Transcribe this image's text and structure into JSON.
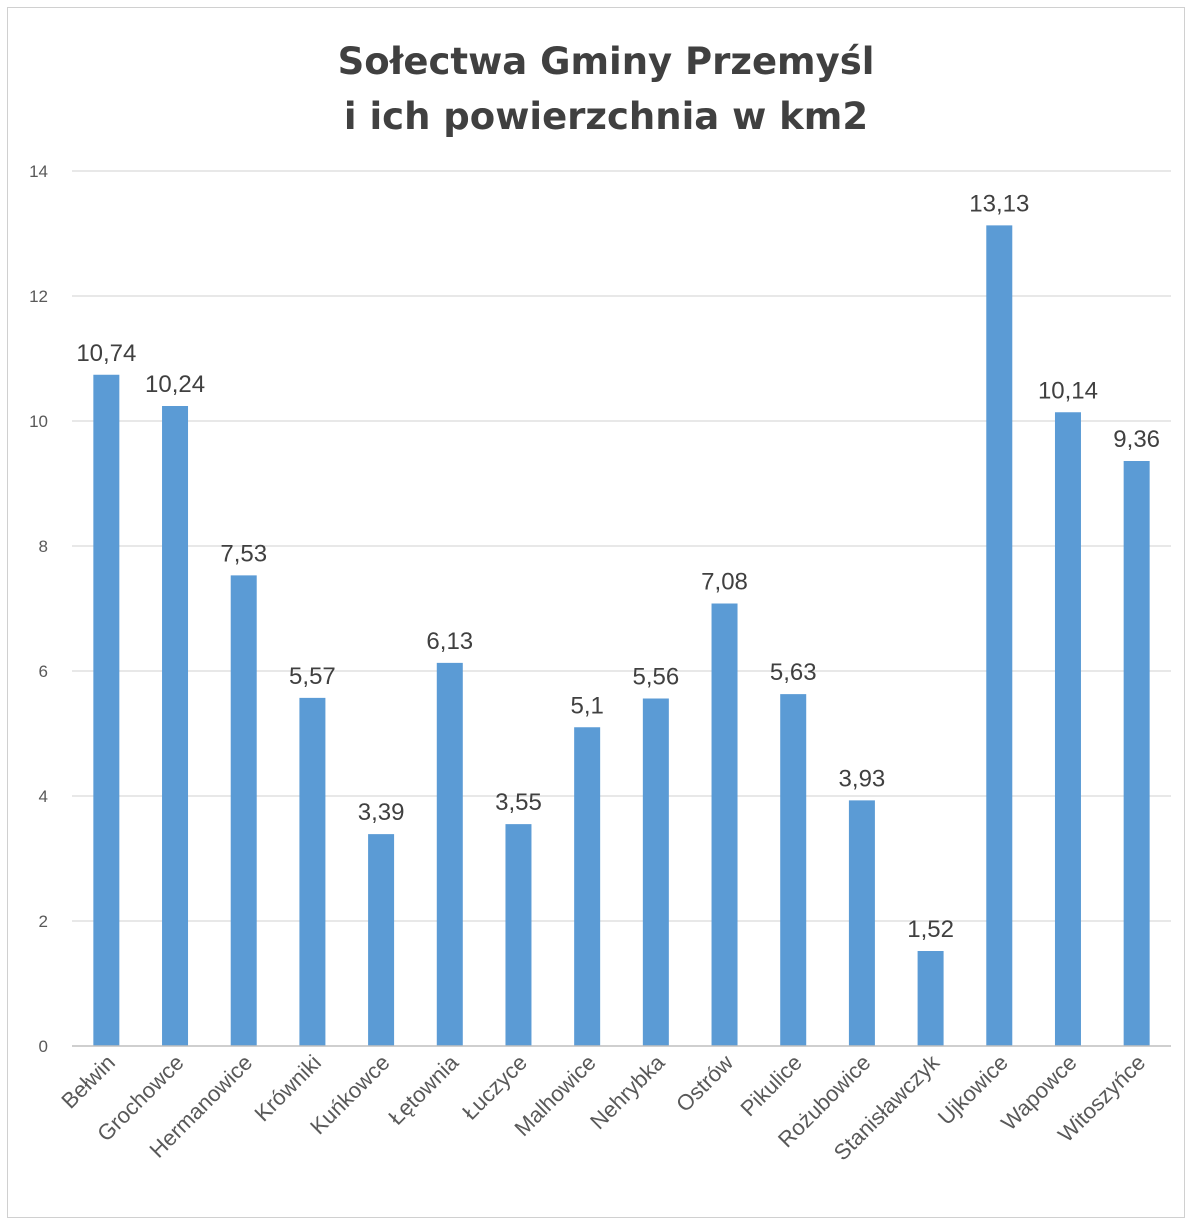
{
  "chart_data": {
    "type": "bar",
    "title_lines": [
      "Sołectwa Gminy Przemyśl",
      "i ich powierzchnia w km2"
    ],
    "categories": [
      "Bełwin",
      "Grochowce",
      "Hermanowice",
      "Krówniki",
      "Kuńkowce",
      "Łętownia",
      "Łuczyce",
      "Malhowice",
      "Nehrybka",
      "Ostrów",
      "Pikulice",
      "Rożubowice",
      "Stanisławczyk",
      "Ujkowice",
      "Wapowce",
      "Witoszyńce"
    ],
    "values": [
      10.74,
      10.24,
      7.53,
      5.57,
      3.39,
      6.13,
      3.55,
      5.1,
      5.56,
      7.08,
      5.63,
      3.93,
      1.52,
      13.13,
      10.14,
      9.36
    ],
    "data_labels": [
      "10,74",
      "10,24",
      "7,53",
      "5,57",
      "3,39",
      "6,13",
      "3,55",
      "5,1",
      "5,56",
      "7,08",
      "5,63",
      "3,93",
      "1,52",
      "13,13",
      "10,14",
      "9,36"
    ],
    "yticks": [
      "0",
      "2",
      "4",
      "6",
      "8",
      "10",
      "12",
      "14"
    ],
    "ylim": [
      0,
      14
    ],
    "xlabel": "",
    "ylabel": "",
    "grid": true,
    "legend": "none",
    "bar_color": "#5b9bd5"
  }
}
